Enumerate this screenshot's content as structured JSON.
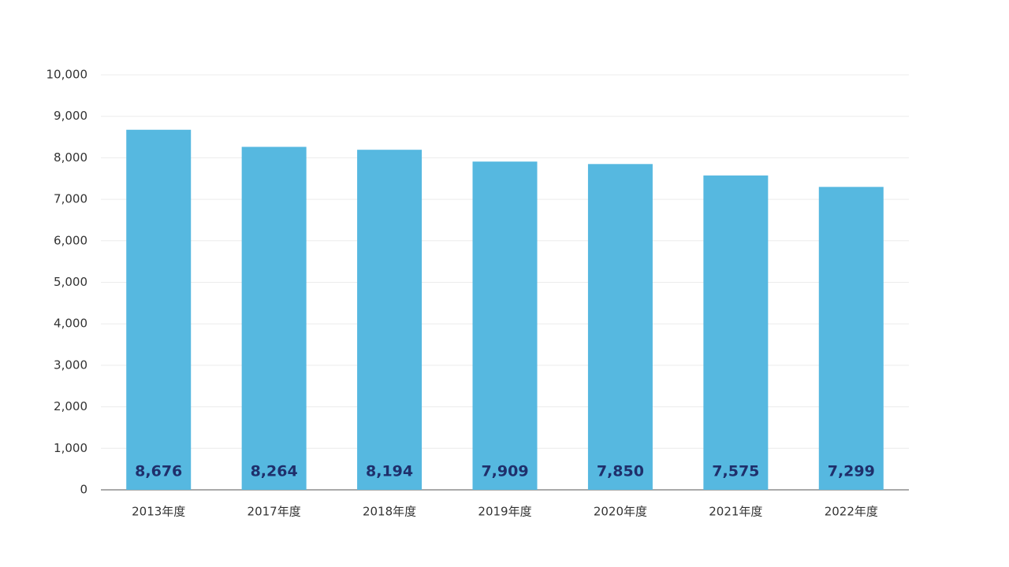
{
  "chart_data": {
    "type": "bar",
    "categories": [
      "2013年度",
      "2017年度",
      "2018年度",
      "2019年度",
      "2020年度",
      "2021年度",
      "2022年度"
    ],
    "values": [
      8676,
      8264,
      8194,
      7909,
      7850,
      7575,
      7299
    ],
    "value_labels": [
      "8,676",
      "8,264",
      "8,194",
      "7,909",
      "7,850",
      "7,575",
      "7,299"
    ],
    "color": "#56b8e0",
    "ylim": [
      0,
      10000
    ],
    "yticks": [
      0,
      {
        "value": 1000,
        "label": "1,000"
      },
      {
        "value": 2000,
        "label": "2,000"
      },
      {
        "value": 3000,
        "label": "3,000"
      },
      {
        "value": 4000,
        "label": "4,000"
      },
      {
        "value": 5000,
        "label": "5,000"
      },
      {
        "value": 6000,
        "label": "6,000"
      },
      {
        "value": 7000,
        "label": "7,000"
      },
      {
        "value": 8000,
        "label": "8,000"
      },
      {
        "value": 9000,
        "label": "9,000"
      },
      {
        "value": 10000,
        "label": "10,000"
      }
    ],
    "grid": true
  }
}
